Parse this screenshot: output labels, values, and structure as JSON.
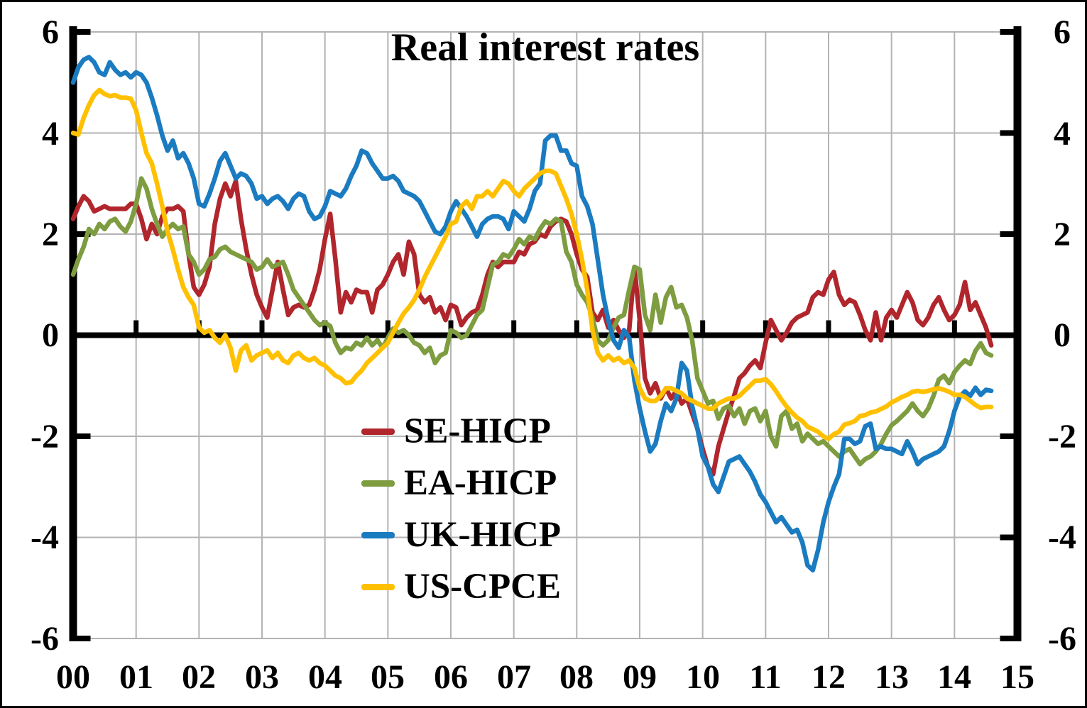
{
  "chart_data": {
    "type": "line",
    "title": "Real interest rates",
    "x_start_year": 2000,
    "x_frequency": "monthly",
    "x_end": 2014.58,
    "xlim": [
      2000,
      2015
    ],
    "ylim": [
      -6,
      6
    ],
    "grid": true,
    "grid_color": "#b3b3b3",
    "zero_line": true,
    "legend_position": "inside-center-left",
    "x_tick_labels": [
      "00",
      "01",
      "02",
      "03",
      "04",
      "05",
      "06",
      "07",
      "08",
      "09",
      "10",
      "11",
      "12",
      "13",
      "14",
      "15"
    ],
    "y_tick_values": [
      6,
      4,
      2,
      0,
      -2,
      -4,
      -6
    ],
    "y_gridline_values": [
      6,
      4,
      2,
      -2,
      -4,
      -6
    ],
    "y_axis_tick_values_left": [
      6,
      2,
      -2,
      -6
    ],
    "y_axis_tick_values_right": [
      6,
      4,
      2,
      -2,
      -4,
      -6
    ],
    "series": [
      {
        "name": "SE-HICP",
        "color": "#b0262c",
        "values": [
          2.3,
          2.55,
          2.75,
          2.65,
          2.45,
          2.5,
          2.55,
          2.5,
          2.5,
          2.5,
          2.5,
          2.6,
          2.6,
          2.3,
          1.9,
          2.2,
          2.0,
          2.35,
          2.5,
          2.5,
          2.55,
          2.45,
          1.6,
          0.95,
          0.8,
          1.0,
          1.35,
          2.2,
          2.7,
          3.0,
          2.75,
          3.05,
          2.3,
          1.7,
          1.2,
          0.8,
          0.55,
          0.35,
          0.9,
          1.45,
          0.9,
          0.4,
          0.55,
          0.6,
          0.55,
          0.6,
          0.9,
          1.3,
          1.9,
          2.4,
          1.5,
          0.45,
          0.85,
          0.65,
          0.9,
          0.85,
          0.85,
          0.45,
          0.9,
          1.0,
          1.2,
          1.45,
          1.6,
          1.2,
          1.85,
          1.6,
          0.8,
          0.65,
          0.75,
          0.45,
          0.55,
          0.3,
          0.6,
          0.55,
          0.2,
          0.35,
          0.45,
          0.5,
          0.8,
          1.2,
          1.45,
          1.35,
          1.45,
          1.45,
          1.45,
          1.65,
          1.6,
          1.8,
          1.85,
          2.0,
          1.95,
          2.15,
          2.25,
          2.3,
          2.25,
          2.0,
          1.6,
          1.3,
          1.15,
          0.45,
          0.3,
          0.5,
          0.15,
          0.3,
          0.1,
          -0.05,
          0.1,
          1.35,
          0.3,
          -0.85,
          -1.15,
          -0.95,
          -1.25,
          -1.05,
          -1.25,
          -1.1,
          -1.35,
          -1.25,
          -1.55,
          -1.85,
          -2.25,
          -2.6,
          -2.75,
          -2.2,
          -1.85,
          -1.5,
          -1.2,
          -0.85,
          -0.75,
          -0.6,
          -0.5,
          -0.65,
          -0.15,
          0.3,
          0.1,
          -0.1,
          0.05,
          0.25,
          0.35,
          0.4,
          0.45,
          0.75,
          0.85,
          0.8,
          1.1,
          1.25,
          0.8,
          0.6,
          0.7,
          0.65,
          0.4,
          0.1,
          -0.1,
          0.45,
          -0.1,
          0.35,
          0.5,
          0.35,
          0.6,
          0.85,
          0.65,
          0.3,
          0.2,
          0.35,
          0.6,
          0.75,
          0.5,
          0.3,
          0.4,
          0.6,
          1.05,
          0.5,
          0.65,
          0.4,
          0.15,
          -0.2
        ]
      },
      {
        "name": "EA-HICP",
        "color": "#7e9c40",
        "values": [
          1.2,
          1.5,
          1.75,
          2.1,
          2.0,
          2.2,
          2.1,
          2.25,
          2.3,
          2.15,
          2.05,
          2.25,
          2.6,
          3.1,
          2.9,
          2.5,
          2.2,
          1.95,
          2.1,
          2.2,
          2.1,
          2.15,
          1.6,
          1.45,
          1.2,
          1.3,
          1.5,
          1.55,
          1.7,
          1.75,
          1.65,
          1.6,
          1.55,
          1.5,
          1.45,
          1.3,
          1.35,
          1.5,
          1.35,
          1.4,
          1.45,
          1.2,
          0.9,
          0.75,
          0.6,
          0.45,
          0.3,
          0.2,
          0.25,
          0.18,
          -0.15,
          -0.35,
          -0.25,
          -0.28,
          -0.15,
          -0.2,
          -0.05,
          -0.2,
          -0.1,
          -0.25,
          -0.05,
          0.13,
          0.05,
          0.1,
          0.0,
          -0.15,
          -0.2,
          -0.35,
          -0.25,
          -0.55,
          -0.4,
          -0.35,
          0.1,
          0.05,
          -0.05,
          0.0,
          0.2,
          0.4,
          0.5,
          0.95,
          1.4,
          1.45,
          1.6,
          1.55,
          1.7,
          1.9,
          1.8,
          1.95,
          1.9,
          2.1,
          2.25,
          2.2,
          2.3,
          2.25,
          1.65,
          1.45,
          1.0,
          0.8,
          0.65,
          0.35,
          -0.1,
          -0.2,
          -0.1,
          0.15,
          0.35,
          0.4,
          0.9,
          1.35,
          1.3,
          0.4,
          0.1,
          0.8,
          0.25,
          0.75,
          0.95,
          0.55,
          0.6,
          0.35,
          -0.1,
          -0.85,
          -1.1,
          -1.35,
          -1.3,
          -1.65,
          -1.45,
          -1.4,
          -1.6,
          -1.45,
          -1.75,
          -1.5,
          -1.45,
          -1.7,
          -1.5,
          -2.0,
          -2.2,
          -1.6,
          -1.5,
          -1.85,
          -1.75,
          -2.1,
          -1.95,
          -2.05,
          -2.15,
          -2.1,
          -2.2,
          -2.3,
          -2.4,
          -2.3,
          -2.25,
          -2.4,
          -2.55,
          -2.45,
          -2.4,
          -2.3,
          -2.15,
          -1.95,
          -1.78,
          -1.7,
          -1.6,
          -1.5,
          -1.35,
          -1.5,
          -1.6,
          -1.45,
          -1.2,
          -0.88,
          -0.8,
          -0.95,
          -0.73,
          -0.6,
          -0.5,
          -0.57,
          -0.31,
          -0.16,
          -0.35,
          -0.4
        ]
      },
      {
        "name": "UK-HICP",
        "color": "#1b7bc0",
        "values": [
          5.0,
          5.3,
          5.45,
          5.5,
          5.4,
          5.2,
          5.15,
          5.4,
          5.25,
          5.15,
          5.2,
          5.1,
          5.2,
          5.15,
          5.0,
          4.7,
          4.35,
          3.95,
          3.65,
          3.85,
          3.5,
          3.6,
          3.4,
          3.1,
          2.6,
          2.55,
          2.8,
          3.1,
          3.45,
          3.6,
          3.35,
          3.1,
          3.2,
          3.15,
          3.0,
          2.7,
          2.75,
          2.6,
          2.7,
          2.75,
          2.65,
          2.5,
          2.7,
          2.8,
          2.75,
          2.45,
          2.3,
          2.35,
          2.55,
          2.85,
          2.8,
          2.75,
          2.9,
          3.15,
          3.35,
          3.65,
          3.6,
          3.4,
          3.25,
          3.1,
          3.1,
          3.15,
          3.05,
          2.85,
          2.8,
          2.75,
          2.65,
          2.45,
          2.25,
          2.05,
          2.0,
          2.15,
          2.45,
          2.65,
          2.5,
          2.35,
          2.15,
          1.95,
          2.2,
          2.3,
          2.35,
          2.35,
          2.3,
          2.1,
          2.45,
          2.35,
          2.25,
          2.5,
          2.85,
          3.0,
          3.85,
          3.95,
          3.95,
          3.65,
          3.65,
          3.4,
          3.35,
          2.75,
          2.55,
          2.2,
          1.5,
          0.8,
          0.3,
          -0.1,
          -0.25,
          0.1,
          -0.05,
          -0.9,
          -1.45,
          -1.9,
          -2.3,
          -2.15,
          -1.7,
          -1.35,
          -1.5,
          -1.25,
          -0.55,
          -0.7,
          -1.4,
          -1.85,
          -2.4,
          -2.6,
          -2.95,
          -3.1,
          -2.8,
          -2.5,
          -2.45,
          -2.4,
          -2.55,
          -2.7,
          -2.9,
          -3.15,
          -3.3,
          -3.5,
          -3.7,
          -3.6,
          -3.75,
          -3.9,
          -3.85,
          -4.1,
          -4.55,
          -4.65,
          -4.25,
          -3.7,
          -3.3,
          -3.0,
          -2.75,
          -2.05,
          -2.05,
          -2.15,
          -2.1,
          -1.8,
          -1.75,
          -2.25,
          -2.2,
          -2.25,
          -2.25,
          -2.3,
          -2.35,
          -2.1,
          -2.3,
          -2.55,
          -2.45,
          -2.4,
          -2.35,
          -2.3,
          -2.2,
          -1.9,
          -1.5,
          -1.22,
          -1.11,
          -1.2,
          -1.04,
          -1.18,
          -1.08,
          -1.1
        ]
      },
      {
        "name": "US-CPCE",
        "color": "#ffc000",
        "values": [
          4.0,
          3.97,
          4.3,
          4.55,
          4.75,
          4.85,
          4.77,
          4.73,
          4.75,
          4.7,
          4.7,
          4.68,
          4.45,
          4.0,
          3.6,
          3.4,
          3.0,
          2.55,
          2.05,
          1.7,
          1.3,
          0.95,
          0.75,
          0.6,
          0.15,
          0.05,
          0.1,
          -0.05,
          -0.15,
          0.0,
          -0.25,
          -0.7,
          -0.3,
          -0.2,
          -0.5,
          -0.4,
          -0.35,
          -0.3,
          -0.45,
          -0.35,
          -0.5,
          -0.55,
          -0.4,
          -0.35,
          -0.45,
          -0.5,
          -0.45,
          -0.55,
          -0.6,
          -0.7,
          -0.8,
          -0.85,
          -0.95,
          -0.93,
          -0.8,
          -0.7,
          -0.55,
          -0.45,
          -0.35,
          -0.25,
          -0.15,
          0.05,
          0.25,
          0.43,
          0.55,
          0.7,
          0.9,
          1.15,
          1.35,
          1.55,
          1.75,
          1.95,
          2.2,
          2.25,
          2.55,
          2.65,
          2.5,
          2.75,
          2.75,
          2.85,
          2.75,
          2.9,
          3.05,
          3.0,
          2.85,
          2.75,
          2.9,
          3.0,
          3.1,
          3.2,
          3.25,
          3.25,
          3.2,
          2.95,
          2.7,
          2.4,
          2.0,
          1.5,
          0.9,
          0.1,
          -0.35,
          -0.5,
          -0.4,
          -0.5,
          -0.45,
          -0.55,
          -0.5,
          -0.65,
          -1.05,
          -1.25,
          -1.3,
          -1.3,
          -1.2,
          -1.05,
          -1.05,
          -1.1,
          -1.15,
          -1.25,
          -1.3,
          -1.35,
          -1.4,
          -1.45,
          -1.45,
          -1.35,
          -1.3,
          -1.25,
          -1.25,
          -1.2,
          -1.1,
          -1.0,
          -0.9,
          -0.9,
          -0.87,
          -0.97,
          -1.11,
          -1.27,
          -1.41,
          -1.53,
          -1.63,
          -1.7,
          -1.81,
          -1.86,
          -1.91,
          -2.0,
          -2.05,
          -1.96,
          -1.91,
          -1.77,
          -1.74,
          -1.7,
          -1.6,
          -1.58,
          -1.53,
          -1.51,
          -1.46,
          -1.41,
          -1.33,
          -1.28,
          -1.22,
          -1.18,
          -1.12,
          -1.1,
          -1.12,
          -1.1,
          -1.07,
          -1.05,
          -1.08,
          -1.12,
          -1.18,
          -1.18,
          -1.22,
          -1.3,
          -1.38,
          -1.44,
          -1.42,
          -1.42
        ]
      }
    ]
  },
  "axes": {
    "y_left": [
      "6",
      "4",
      "2",
      "0",
      "-2",
      "-4",
      "-6"
    ],
    "y_right": [
      "6",
      "4",
      "2",
      "0",
      "-2",
      "-4",
      "-6"
    ],
    "x": [
      "00",
      "01",
      "02",
      "03",
      "04",
      "05",
      "06",
      "07",
      "08",
      "09",
      "10",
      "11",
      "12",
      "13",
      "14",
      "15"
    ]
  }
}
